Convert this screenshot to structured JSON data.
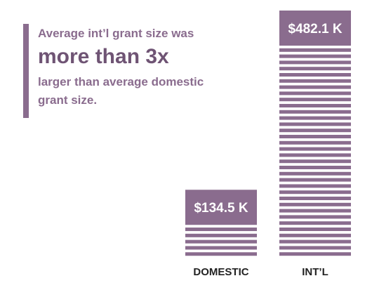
{
  "callout": {
    "line1": "Average int’l grant size was",
    "line2": "more than 3x",
    "line3": "larger than average domestic grant size."
  },
  "colors": {
    "bar": "#8a6c8e",
    "label": "#ffffff",
    "axis_text": "#222222"
  },
  "chart_data": {
    "type": "bar",
    "categories": [
      "DOMESTIC",
      "INT’L"
    ],
    "values": [
      134.5,
      482.1
    ],
    "value_labels": [
      "$134.5 K",
      "$482.1 K"
    ],
    "unit": "K",
    "title": "",
    "xlabel": "",
    "ylabel": ""
  }
}
